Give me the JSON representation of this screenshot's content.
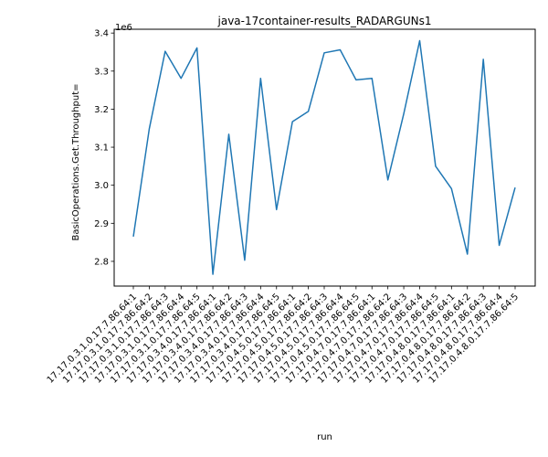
{
  "chart_data": {
    "type": "line",
    "title": "java-17container-results_RADARGUNs1",
    "xlabel": "run",
    "ylabel": "BasicOperations.Get.Throughput=",
    "y_multiplier_label": "1e6",
    "ylim": [
      2.735,
      3.41
    ],
    "y_ticks": [
      2.8,
      2.9,
      3.0,
      3.1,
      3.2,
      3.3,
      3.4
    ],
    "y_tick_labels": [
      "2.8",
      "2.9",
      "3.0",
      "3.1",
      "3.2",
      "3.3",
      "3.4"
    ],
    "grid": false,
    "line_color": "#1f77b4",
    "categories": [
      "17.17.0.3.1.0.17.7.86.64:1",
      "17.17.0.3.1.0.17.7.86.64:2",
      "17.17.0.3.1.0.17.7.86.64:3",
      "17.17.0.3.1.0.17.7.86.64:4",
      "17.17.0.3.1.0.17.7.86.64:5",
      "17.17.0.3.4.0.17.7.86.64:1",
      "17.17.0.3.4.0.17.7.86.64:2",
      "17.17.0.3.4.0.17.7.86.64:3",
      "17.17.0.3.4.0.17.7.86.64:4",
      "17.17.0.3.4.0.17.7.86.64:5",
      "17.17.0.4.5.0.17.7.86.64:1",
      "17.17.0.4.5.0.17.7.86.64:2",
      "17.17.0.4.5.0.17.7.86.64:3",
      "17.17.0.4.5.0.17.7.86.64:4",
      "17.17.0.4.5.0.17.7.86.64:5",
      "17.17.0.4.7.0.17.7.86.64:1",
      "17.17.0.4.7.0.17.7.86.64:2",
      "17.17.0.4.7.0.17.7.86.64:3",
      "17.17.0.4.7.0.17.7.86.64:4",
      "17.17.0.4.7.0.17.7.86.64:5",
      "17.17.0.4.8.0.17.7.86.64:1",
      "17.17.0.4.8.0.17.7.86.64:2",
      "17.17.0.4.8.0.17.7.86.64:3",
      "17.17.0.4.8.0.17.7.86.64:4",
      "17.17.0.4.8.0.17.7.86.64:5"
    ],
    "values": [
      2865000,
      3148000,
      3352000,
      3281000,
      3361000,
      2766000,
      3134000,
      2803000,
      3281000,
      2936000,
      3167000,
      3194000,
      3348000,
      3356000,
      3277000,
      3281000,
      3014000,
      3188000,
      3380000,
      3050000,
      2991000,
      2819000,
      3331000,
      2842000,
      2994000
    ]
  }
}
